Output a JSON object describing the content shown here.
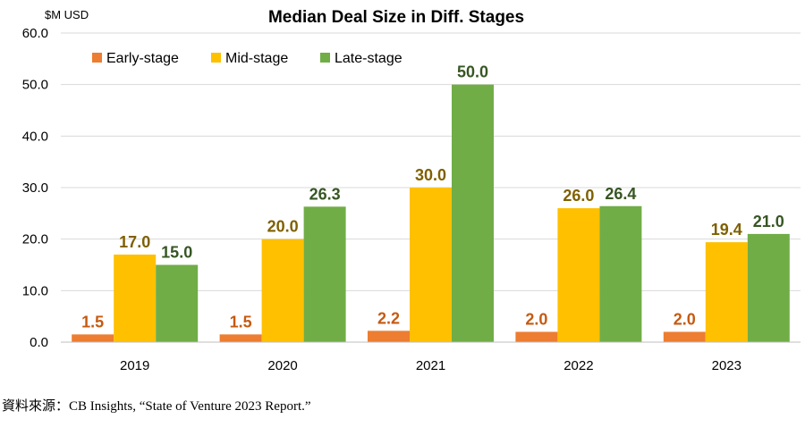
{
  "chart_data": {
    "type": "bar",
    "title": "Median Deal Size in Diff. Stages",
    "unit_label": "$M USD",
    "categories": [
      "2019",
      "2020",
      "2021",
      "2022",
      "2023"
    ],
    "series": [
      {
        "name": "Early-stage",
        "color": "#ED7D31",
        "label_color": "#C55A11",
        "values": [
          1.5,
          1.5,
          2.2,
          2.0,
          2.0
        ],
        "labels": [
          "1.5",
          "1.5",
          "2.2",
          "2.0",
          "2.0"
        ]
      },
      {
        "name": "Mid-stage",
        "color": "#FFC000",
        "label_color": "#7F6000",
        "values": [
          17.0,
          20.0,
          30.0,
          26.0,
          19.4
        ],
        "labels": [
          "17.0",
          "20.0",
          "30.0",
          "26.0",
          "19.4"
        ]
      },
      {
        "name": "Late-stage",
        "color": "#70AD47",
        "label_color": "#375623",
        "values": [
          15.0,
          26.3,
          50.0,
          26.4,
          21.0
        ],
        "labels": [
          "15.0",
          "26.3",
          "50.0",
          "26.4",
          "21.0"
        ]
      }
    ],
    "ylim": [
      0,
      60
    ],
    "yticks": [
      "0.0",
      "10.0",
      "20.0",
      "30.0",
      "40.0",
      "50.0",
      "60.0"
    ],
    "grid": true,
    "legend_position": "top-left"
  },
  "source": "資料來源：CB Insights, “State of Venture 2023 Report.”"
}
